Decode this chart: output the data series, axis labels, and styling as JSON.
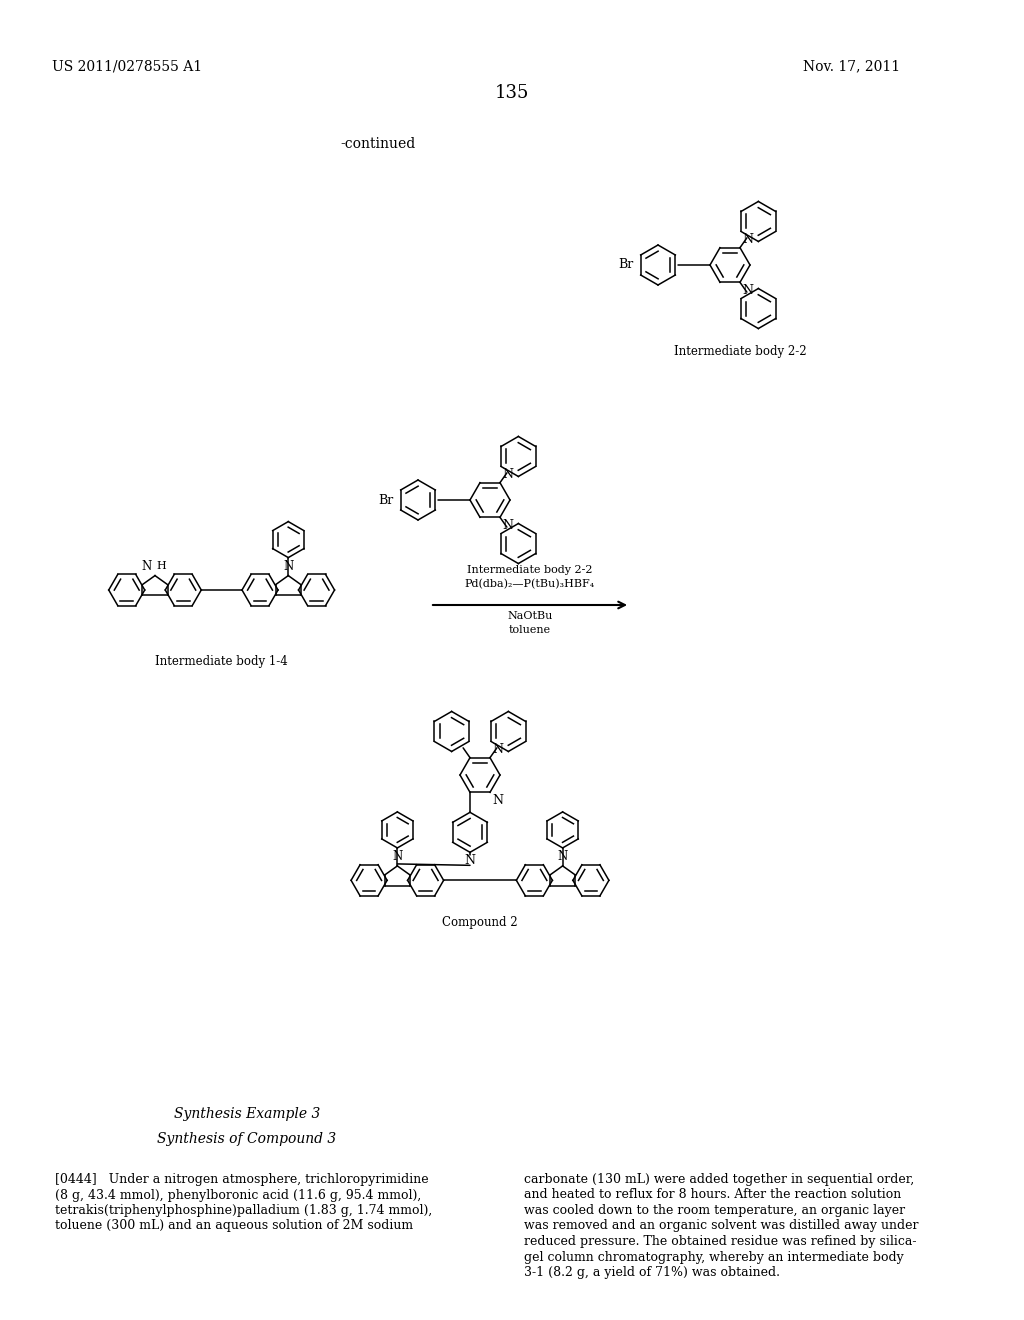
{
  "page_number": "135",
  "patent_number": "US 2011/0278555 A1",
  "patent_date": "Nov. 17, 2011",
  "continued_label": "-continued",
  "intermediate_body_2_2_label": "Intermediate body 2-2",
  "intermediate_body_1_4_label": "Intermediate body 1-4",
  "compound_2_label": "Compound 2",
  "reaction_line1": "Intermediate body 2-2",
  "reaction_line2": "Pd(dba)₂—P(tBu)₃HBF₄",
  "reaction_line3": "NaOtBu",
  "reaction_line4": "toluene",
  "synthesis_example_title": "Synthesis Example 3",
  "synthesis_compound_title": "Synthesis of Compound 3",
  "paragraph_ref": "[0444]",
  "left_text_lines": [
    "(8 g, 43.4 mmol), phenylboronic acid (11.6 g, 95.4 mmol),",
    "tetrakis(triphenylphosphine)palladium (1.83 g, 1.74 mmol),",
    "toluene (300 mL) and an aqueous solution of 2M sodium"
  ],
  "right_text_lines": [
    "carbonate (130 mL) were added together in sequential order,",
    "and heated to reflux for 8 hours. After the reaction solution",
    "was cooled down to the room temperature, an organic layer",
    "was removed and an organic solvent was distilled away under",
    "reduced pressure. The obtained residue was refined by silica-",
    "gel column chromatography, whereby an intermediate body",
    "3-1 (8.2 g, a yield of 71%) was obtained."
  ],
  "background_color": "#ffffff",
  "text_color": "#000000"
}
